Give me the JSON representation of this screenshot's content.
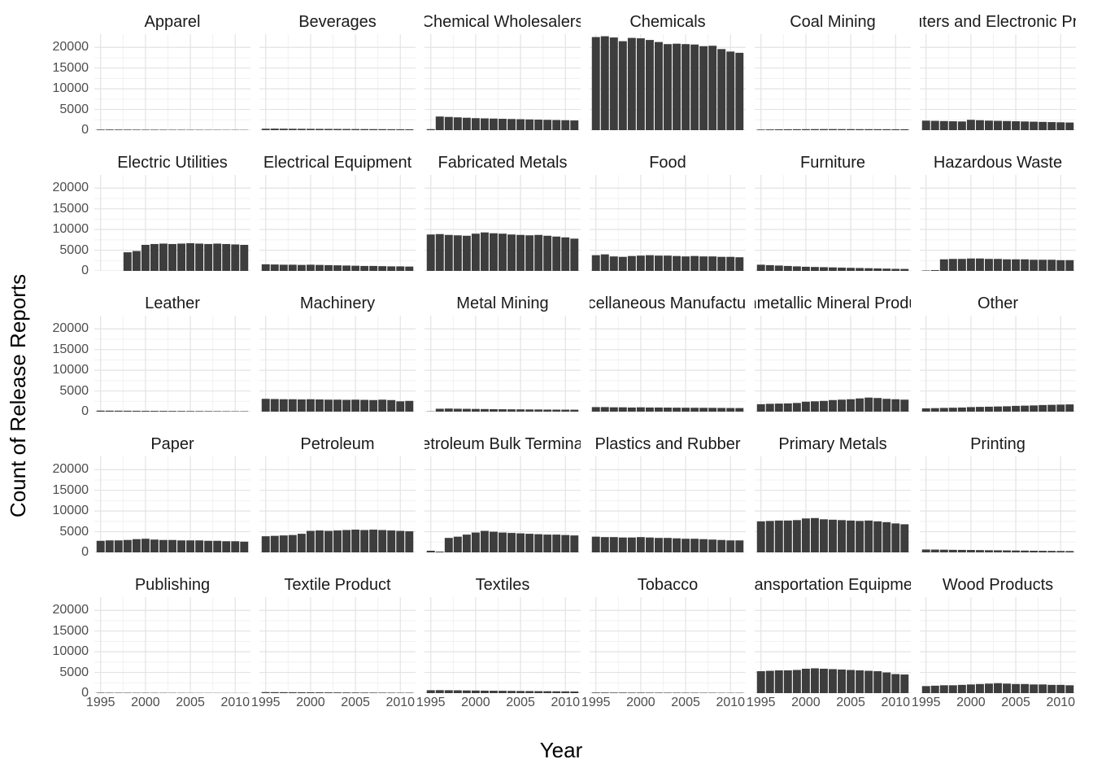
{
  "chart_data": {
    "type": "bar",
    "title": "",
    "xlabel": "Year",
    "ylabel": "Count of Release Reports",
    "x": [
      1995,
      1996,
      1997,
      1998,
      1999,
      2000,
      2001,
      2002,
      2003,
      2004,
      2005,
      2006,
      2007,
      2008,
      2009,
      2010,
      2011
    ],
    "x_ticks": [
      1995,
      2000,
      2005,
      2010
    ],
    "y_ticks": [
      0,
      5000,
      10000,
      15000,
      20000
    ],
    "y_minor_ticks": [
      2500,
      7500,
      12500,
      17500
    ],
    "x_minor_ticks": [
      1997.5,
      2002.5,
      2007.5
    ],
    "ylim": [
      0,
      23200
    ],
    "bar_color": "#3d3d3d",
    "grid_major_color": "#e3e3e3",
    "grid_minor_color": "#f1f1f1",
    "legend_position": "none",
    "facet_columns": 6,
    "facets": [
      {
        "label": "Apparel",
        "values": [
          150,
          160,
          150,
          140,
          130,
          120,
          120,
          110,
          100,
          100,
          90,
          90,
          80,
          80,
          70,
          70,
          60
        ]
      },
      {
        "label": "Beverages",
        "values": [
          350,
          380,
          360,
          340,
          330,
          320,
          310,
          300,
          290,
          280,
          270,
          260,
          250,
          240,
          230,
          220,
          210
        ]
      },
      {
        "label": "Chemical Wholesalers",
        "values": [
          250,
          3300,
          3200,
          3100,
          3000,
          2900,
          2850,
          2800,
          2750,
          2700,
          2650,
          2600,
          2550,
          2500,
          2450,
          2400,
          2350
        ]
      },
      {
        "label": "Chemicals",
        "values": [
          22500,
          22700,
          22400,
          21500,
          22300,
          22200,
          21800,
          21300,
          20800,
          20900,
          20800,
          20700,
          20300,
          20400,
          19600,
          19000,
          18700
        ]
      },
      {
        "label": "Coal Mining",
        "values": [
          150,
          180,
          200,
          220,
          230,
          240,
          250,
          260,
          260,
          250,
          250,
          240,
          240,
          230,
          230,
          220,
          220
        ]
      },
      {
        "label": "Computers and Electronic Products",
        "values": [
          2300,
          2250,
          2200,
          2150,
          2100,
          2500,
          2400,
          2300,
          2250,
          2200,
          2150,
          2100,
          2050,
          2000,
          1950,
          1900,
          1850
        ]
      },
      {
        "label": "Electric Utilities",
        "values": [
          0,
          0,
          0,
          4500,
          4800,
          6300,
          6500,
          6600,
          6500,
          6600,
          6700,
          6600,
          6500,
          6600,
          6500,
          6400,
          6300
        ]
      },
      {
        "label": "Electrical Equipment",
        "values": [
          1600,
          1550,
          1500,
          1500,
          1450,
          1500,
          1450,
          1400,
          1350,
          1300,
          1250,
          1200,
          1200,
          1150,
          1100,
          1100,
          1050
        ]
      },
      {
        "label": "Fabricated Metals",
        "values": [
          8800,
          8900,
          8700,
          8600,
          8500,
          9000,
          9300,
          9100,
          9000,
          8800,
          8700,
          8600,
          8700,
          8500,
          8300,
          8100,
          7800
        ]
      },
      {
        "label": "Food",
        "values": [
          3800,
          4000,
          3500,
          3400,
          3600,
          3700,
          3800,
          3700,
          3700,
          3600,
          3500,
          3600,
          3500,
          3500,
          3400,
          3400,
          3300
        ]
      },
      {
        "label": "Furniture",
        "values": [
          1500,
          1400,
          1300,
          1200,
          1100,
          1000,
          950,
          900,
          850,
          800,
          750,
          700,
          650,
          600,
          550,
          500,
          480
        ]
      },
      {
        "label": "Hazardous Waste",
        "values": [
          100,
          200,
          2800,
          2900,
          2900,
          3000,
          3000,
          2900,
          2900,
          2800,
          2800,
          2800,
          2700,
          2700,
          2700,
          2600,
          2600
        ]
      },
      {
        "label": "Leather",
        "values": [
          250,
          240,
          230,
          220,
          210,
          200,
          190,
          180,
          170,
          160,
          150,
          140,
          130,
          120,
          110,
          100,
          100
        ]
      },
      {
        "label": "Machinery",
        "values": [
          3100,
          3050,
          3000,
          3000,
          2950,
          3000,
          2950,
          2900,
          2900,
          2850,
          2900,
          2850,
          2800,
          2900,
          2800,
          2500,
          2600
        ]
      },
      {
        "label": "Metal Mining",
        "values": [
          60,
          700,
          750,
          700,
          680,
          650,
          630,
          600,
          580,
          560,
          550,
          530,
          520,
          500,
          490,
          480,
          470
        ]
      },
      {
        "label": "Miscellaneous Manufacturing",
        "values": [
          1100,
          1100,
          1050,
          1050,
          1000,
          1050,
          1000,
          1000,
          980,
          960,
          950,
          940,
          930,
          920,
          900,
          880,
          870
        ]
      },
      {
        "label": "Nonmetallic Mineral Products",
        "values": [
          1800,
          1900,
          1950,
          2000,
          2100,
          2400,
          2500,
          2600,
          2800,
          2900,
          3000,
          3200,
          3400,
          3300,
          3100,
          3000,
          2900
        ]
      },
      {
        "label": "Other",
        "values": [
          800,
          850,
          900,
          950,
          1000,
          1100,
          1150,
          1200,
          1250,
          1300,
          1400,
          1450,
          1500,
          1600,
          1650,
          1700,
          1750
        ]
      },
      {
        "label": "Paper",
        "values": [
          2800,
          2900,
          2900,
          3000,
          3200,
          3300,
          3100,
          3000,
          3000,
          2900,
          2900,
          2900,
          2800,
          2800,
          2700,
          2700,
          2600
        ]
      },
      {
        "label": "Petroleum",
        "values": [
          3900,
          4000,
          4100,
          4200,
          4500,
          5200,
          5300,
          5200,
          5300,
          5400,
          5500,
          5400,
          5500,
          5400,
          5300,
          5200,
          5100
        ]
      },
      {
        "label": "Petroleum Bulk Terminals",
        "values": [
          400,
          200,
          3500,
          3800,
          4300,
          4800,
          5200,
          5000,
          4800,
          4700,
          4600,
          4500,
          4400,
          4300,
          4300,
          4200,
          4100
        ]
      },
      {
        "label": "Plastics and Rubber",
        "values": [
          3800,
          3700,
          3700,
          3600,
          3600,
          3700,
          3600,
          3500,
          3500,
          3400,
          3300,
          3300,
          3200,
          3100,
          3000,
          2900,
          2900
        ]
      },
      {
        "label": "Primary Metals",
        "values": [
          7500,
          7600,
          7700,
          7700,
          7800,
          8200,
          8300,
          8000,
          7900,
          7800,
          7700,
          7600,
          7700,
          7500,
          7300,
          7000,
          6800
        ]
      },
      {
        "label": "Printing",
        "values": [
          700,
          680,
          650,
          620,
          600,
          580,
          550,
          520,
          500,
          480,
          450,
          430,
          400,
          380,
          360,
          340,
          320
        ]
      },
      {
        "label": "Publishing",
        "values": [
          110,
          100,
          95,
          90,
          85,
          80,
          75,
          70,
          65,
          60,
          55,
          50,
          45,
          40,
          35,
          30,
          30
        ]
      },
      {
        "label": "Textile Product",
        "values": [
          250,
          240,
          230,
          220,
          210,
          200,
          190,
          180,
          170,
          160,
          150,
          140,
          130,
          120,
          110,
          100,
          100
        ]
      },
      {
        "label": "Textiles",
        "values": [
          700,
          720,
          700,
          680,
          650,
          630,
          600,
          580,
          560,
          540,
          520,
          500,
          480,
          460,
          440,
          420,
          400
        ]
      },
      {
        "label": "Tobacco",
        "values": [
          150,
          150,
          140,
          140,
          130,
          130,
          120,
          120,
          110,
          110,
          100,
          100,
          90,
          90,
          80,
          80,
          80
        ]
      },
      {
        "label": "Transportation Equipment",
        "values": [
          5300,
          5400,
          5500,
          5500,
          5600,
          5900,
          6000,
          5900,
          5800,
          5700,
          5600,
          5500,
          5400,
          5300,
          5000,
          4600,
          4500
        ]
      },
      {
        "label": "Wood Products",
        "values": [
          1700,
          1800,
          1900,
          1900,
          2000,
          2100,
          2200,
          2300,
          2400,
          2300,
          2200,
          2200,
          2100,
          2100,
          2000,
          2000,
          1900
        ]
      }
    ]
  }
}
